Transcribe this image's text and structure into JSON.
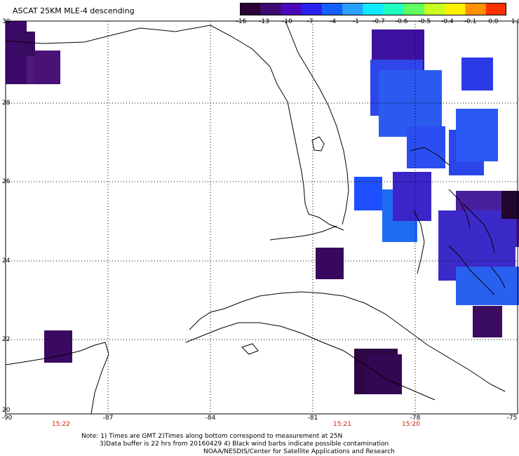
{
  "title": "ASCAT 25KM MLE-4 descending",
  "colorbar": {
    "labels": [
      "-16",
      "-13",
      "-10",
      "-7",
      "-4",
      "-1",
      "-0.7",
      "-0.6",
      "-0.5",
      "-0.4",
      "-0.1",
      "0.0",
      "1.0"
    ],
    "colors": [
      "#2a0035",
      "#3c0a73",
      "#4a08b8",
      "#2a20f0",
      "#1460ff",
      "#2aa0ff",
      "#10e8ff",
      "#20ffc0",
      "#60ff60",
      "#c8ff20",
      "#fff000",
      "#ff9000",
      "#ff3000"
    ]
  },
  "axes": {
    "lat_ticks": [
      "30",
      "28",
      "26",
      "24",
      "22",
      "20"
    ],
    "lon_ticks": [
      "-90",
      "-87",
      "-84",
      "-81",
      "-78",
      "-75"
    ]
  },
  "pass_times": [
    "15:22",
    "15:21",
    "15:20"
  ],
  "notes": [
    "Note: 1) Times are GMT 2)Times along bottom correspond to measurement at 25N",
    "3)Data buffer is 22 hrs from 20160429 4) Black wind barbs indicate possible contamination",
    "NOAA/NESDIS/Center for Satellite Applications and Research"
  ]
}
